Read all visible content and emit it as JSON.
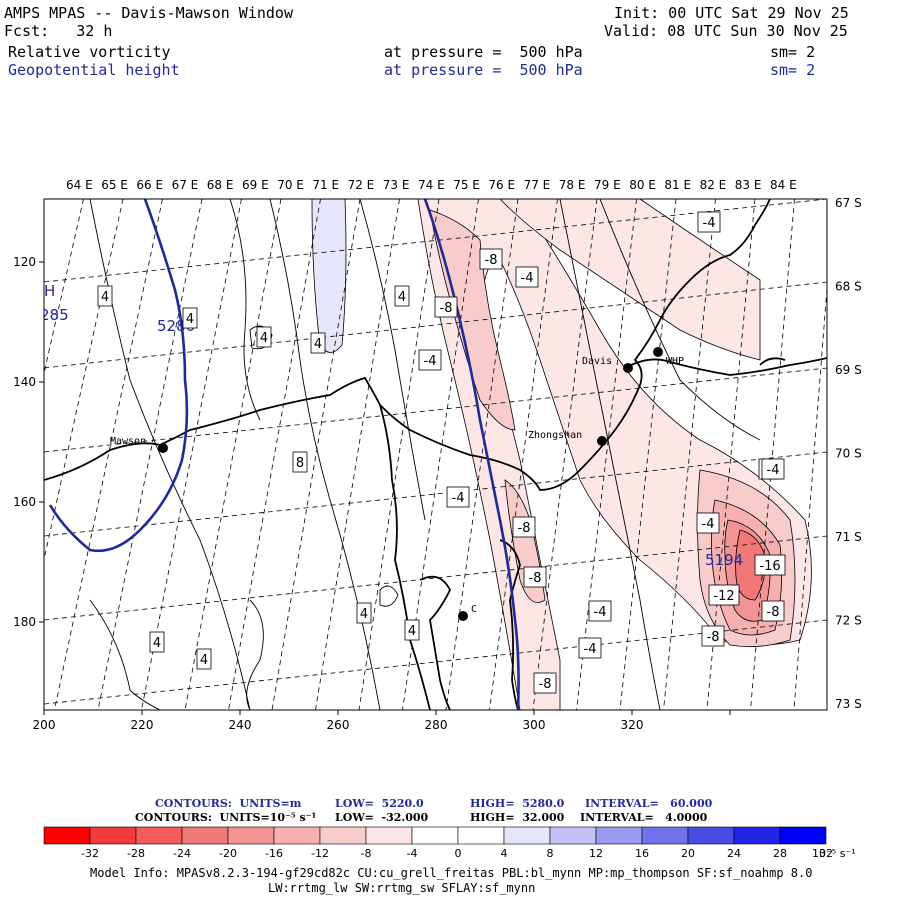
{
  "header": {
    "title": "AMPS MPAS -- Davis-Mawson Window",
    "fcst": "Fcst:   32 h",
    "init": "Init: 00 UTC Sat 29 Nov 25",
    "valid": "Valid: 08 UTC Sun 30 Nov 25",
    "fields": [
      {
        "name": "Relative vorticity",
        "level": "at pressure =  500 hPa",
        "sm": "sm= 2",
        "color": "#000000"
      },
      {
        "name": "Geopotential height",
        "level": "at pressure =  500 hPa",
        "sm": "sm= 2",
        "color": "#1f2a9c"
      }
    ]
  },
  "map": {
    "lon_labels": [
      "64 E",
      "65 E",
      "66 E",
      "67 E",
      "68 E",
      "69 E",
      "70 E",
      "71 E",
      "72 E",
      "73 E",
      "74 E",
      "75 E",
      "76 E",
      "77 E",
      "78 E",
      "79 E",
      "80 E",
      "81 E",
      "82 E",
      "83 E",
      "84 E"
    ],
    "lat_labels": [
      "67 S",
      "68 S",
      "69 S",
      "70 S",
      "71 S",
      "72 S",
      "73 S"
    ],
    "x_ticks": [
      "200",
      "220",
      "240",
      "260",
      "280",
      "300",
      "320"
    ],
    "y_ticks": [
      "120",
      "140",
      "160",
      "180"
    ],
    "stations": [
      "Mawson",
      "Davis",
      "WHP",
      "Zhongshan",
      "C"
    ],
    "height_labels": [
      "5280",
      "5194",
      "285",
      "H"
    ],
    "vort_labels": [
      "-4",
      "-8",
      "-4",
      "-8",
      "-4",
      "-4",
      "-8",
      "-8",
      "-8",
      "-4",
      "-4",
      "-4",
      "-4",
      "-16",
      "-12",
      "-8",
      "-8",
      "-4",
      "4",
      "4",
      "4",
      "4",
      "8",
      "4",
      "4",
      "4",
      "4",
      "4"
    ]
  },
  "legend": {
    "line1": {
      "label": "CONTOURS:  UNITS=m",
      "low": "LOW=  5220.0",
      "high": "HIGH=  5280.0",
      "interval": "INTERVAL=   60.000"
    },
    "line2": {
      "label": "CONTOURS:  UNITS=10⁻⁵ s⁻¹",
      "low": "LOW=  -32.000",
      "high": "HIGH=  32.000",
      "interval": "INTERVAL=   4.0000"
    },
    "scale_values": [
      "-32",
      "-28",
      "-24",
      "-20",
      "-16",
      "-12",
      "-8",
      "-4",
      "0",
      "4",
      "8",
      "12",
      "16",
      "20",
      "24",
      "28",
      "32"
    ],
    "scale_unit": "10⁻⁵ s⁻¹",
    "colors": [
      "#ff0000",
      "#f43a3a",
      "#f45b5b",
      "#f27777",
      "#f39393",
      "#f6b0b0",
      "#f9cccc",
      "#fde6e6",
      "#ffffff",
      "#ffffff",
      "#e6e6fb",
      "#c2c2f5",
      "#9a9aee",
      "#7171e9",
      "#4a4ae4",
      "#2424e6",
      "#0000ff"
    ]
  },
  "footer": {
    "line1": "Model Info: MPASv8.2.3-194-gf29cd82c CU:cu_grell_freitas PBL:bl_mynn MP:mp_thompson SF:sf_noahmp 8.0",
    "line2": "LW:rrtmg_lw SW:rrtmg_sw SFLAY:sf_mynn"
  }
}
